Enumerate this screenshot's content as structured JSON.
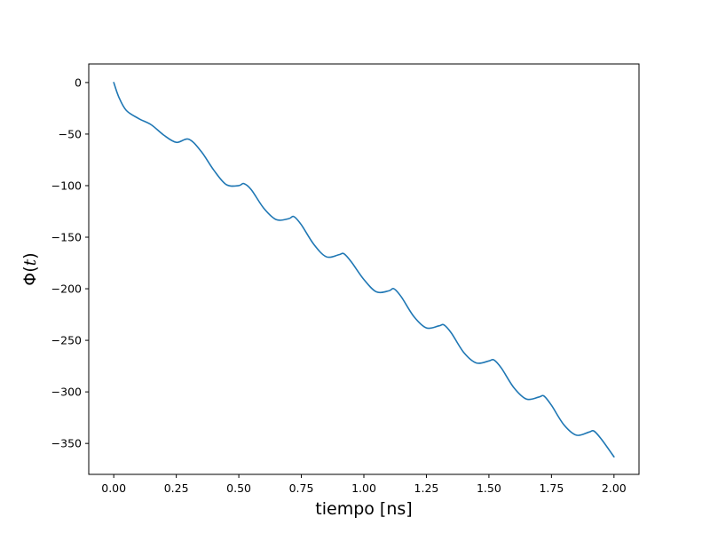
{
  "chart_data": {
    "type": "line",
    "title": "",
    "xlabel": "tiempo [ns]",
    "ylabel": {
      "prefix": "Φ(",
      "var": "t",
      "suffix": ")"
    },
    "xlim": [
      -0.1,
      2.1
    ],
    "ylim": [
      -380,
      18
    ],
    "xticks": [
      0.0,
      0.25,
      0.5,
      0.75,
      1.0,
      1.25,
      1.5,
      1.75,
      2.0
    ],
    "xtick_labels": [
      "0.00",
      "0.25",
      "0.50",
      "0.75",
      "1.00",
      "1.25",
      "1.50",
      "1.75",
      "2.00"
    ],
    "yticks": [
      0,
      -50,
      -100,
      -150,
      -200,
      -250,
      -300,
      -350
    ],
    "ytick_labels": [
      "0",
      "−50",
      "−100",
      "−150",
      "−200",
      "−250",
      "−300",
      "−350"
    ],
    "grid": false,
    "series": [
      {
        "color": "#1f77b4",
        "x": [
          0.0,
          0.02,
          0.05,
          0.1,
          0.15,
          0.2,
          0.25,
          0.3,
          0.35,
          0.4,
          0.45,
          0.5,
          0.52,
          0.55,
          0.6,
          0.65,
          0.7,
          0.72,
          0.75,
          0.8,
          0.85,
          0.9,
          0.92,
          0.95,
          1.0,
          1.05,
          1.1,
          1.12,
          1.15,
          1.2,
          1.25,
          1.3,
          1.32,
          1.35,
          1.4,
          1.45,
          1.5,
          1.52,
          1.55,
          1.6,
          1.65,
          1.7,
          1.72,
          1.75,
          1.8,
          1.85,
          1.9,
          1.92,
          1.95,
          2.0
        ],
        "y": [
          0,
          -14,
          -27,
          -35,
          -41,
          -51,
          -58,
          -55,
          -67,
          -85,
          -99,
          -100,
          -98,
          -104,
          -122,
          -133,
          -132,
          -130,
          -138,
          -157,
          -169,
          -167,
          -166,
          -174,
          -191,
          -203,
          -202,
          -200,
          -208,
          -227,
          -238,
          -236,
          -235,
          -243,
          -262,
          -272,
          -270,
          -269,
          -277,
          -296,
          -307,
          -305,
          -304,
          -313,
          -332,
          -342,
          -339,
          -338,
          -346,
          -363
        ]
      }
    ]
  }
}
